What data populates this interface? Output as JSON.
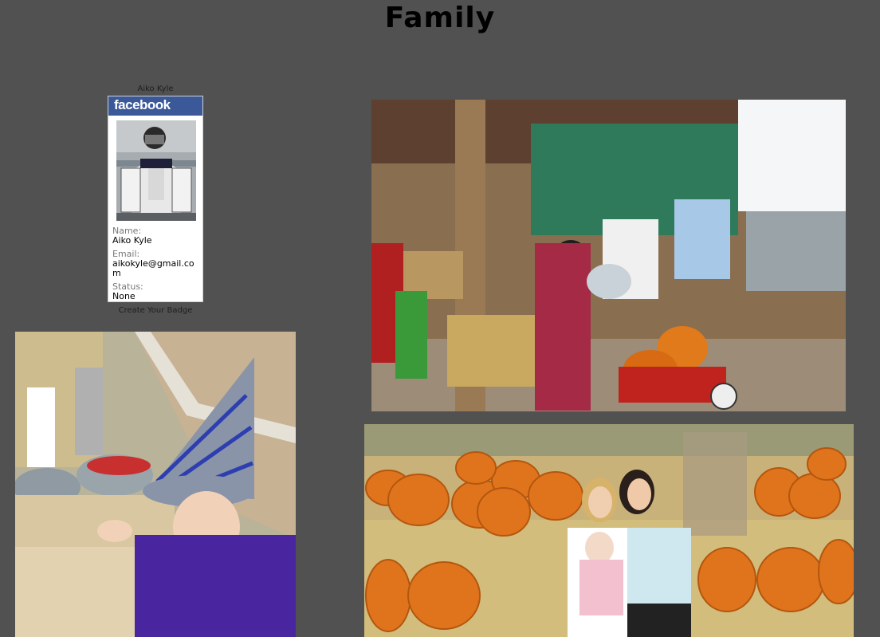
{
  "page": {
    "title": "Family"
  },
  "badge": {
    "owner": "Aiko Kyle",
    "brand": "facebook",
    "name_label": "Name:",
    "name_value": "Aiko Kyle",
    "email_label": "Email:",
    "email_value": "aikokyle@gmail.com",
    "status_label": "Status:",
    "status_value": "None",
    "create_link": "Create Your Badge"
  },
  "colors": {
    "background": "#515151",
    "facebook_blue": "#3b5998"
  }
}
